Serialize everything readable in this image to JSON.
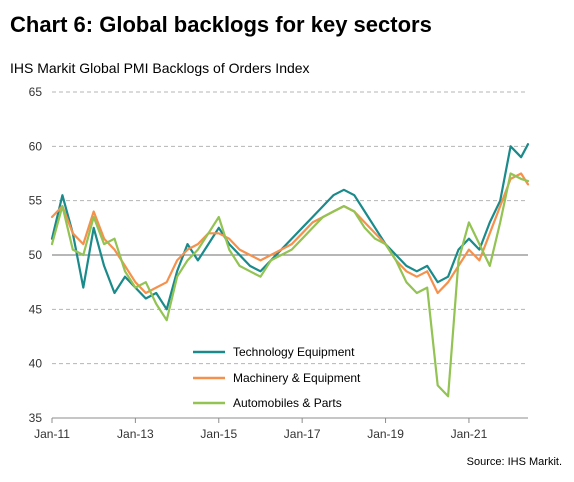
{
  "chart_data": {
    "type": "line",
    "title": "Chart 6: Global backlogs for key sectors",
    "subtitle": "IHS Markit Global PMI Backlogs of Orders Index",
    "source": "Source: IHS Markit.",
    "ylim": [
      35,
      65
    ],
    "yticks": [
      35,
      40,
      45,
      50,
      55,
      60,
      65
    ],
    "xlim": [
      "2011-01",
      "2022-06"
    ],
    "xticks": [
      "Jan-11",
      "Jan-13",
      "Jan-15",
      "Jan-17",
      "Jan-19",
      "Jan-21"
    ],
    "reference_line": 50,
    "grid": "horizontal dashed",
    "legend_position": "bottom-center",
    "series": [
      {
        "name": "Technology Equipment",
        "color": "#1a8a8a",
        "points": [
          [
            "2011-01",
            51.5
          ],
          [
            "2011-04",
            55.5
          ],
          [
            "2011-07",
            52.0
          ],
          [
            "2011-10",
            47.0
          ],
          [
            "2012-01",
            52.5
          ],
          [
            "2012-04",
            49.0
          ],
          [
            "2012-07",
            46.5
          ],
          [
            "2012-10",
            48.0
          ],
          [
            "2013-01",
            47.0
          ],
          [
            "2013-04",
            46.0
          ],
          [
            "2013-07",
            46.5
          ],
          [
            "2013-10",
            45.0
          ],
          [
            "2014-01",
            48.5
          ],
          [
            "2014-04",
            51.0
          ],
          [
            "2014-07",
            49.5
          ],
          [
            "2014-10",
            51.0
          ],
          [
            "2015-01",
            52.5
          ],
          [
            "2015-04",
            51.0
          ],
          [
            "2015-07",
            50.0
          ],
          [
            "2015-10",
            49.0
          ],
          [
            "2016-01",
            48.5
          ],
          [
            "2016-04",
            49.5
          ],
          [
            "2016-07",
            50.5
          ],
          [
            "2016-10",
            51.5
          ],
          [
            "2017-01",
            52.5
          ],
          [
            "2017-04",
            53.5
          ],
          [
            "2017-07",
            54.5
          ],
          [
            "2017-10",
            55.5
          ],
          [
            "2018-01",
            56.0
          ],
          [
            "2018-04",
            55.5
          ],
          [
            "2018-07",
            54.0
          ],
          [
            "2018-10",
            52.5
          ],
          [
            "2019-01",
            51.0
          ],
          [
            "2019-04",
            50.0
          ],
          [
            "2019-07",
            49.0
          ],
          [
            "2019-10",
            48.5
          ],
          [
            "2020-01",
            49.0
          ],
          [
            "2020-04",
            47.5
          ],
          [
            "2020-07",
            48.0
          ],
          [
            "2020-10",
            50.5
          ],
          [
            "2021-01",
            51.5
          ],
          [
            "2021-04",
            50.5
          ],
          [
            "2021-07",
            53.0
          ],
          [
            "2021-10",
            55.0
          ],
          [
            "2022-01",
            60.0
          ],
          [
            "2022-04",
            59.0
          ],
          [
            "2022-06",
            60.2
          ]
        ]
      },
      {
        "name": "Machinery & Equipment",
        "color": "#f5914d",
        "points": [
          [
            "2011-01",
            53.5
          ],
          [
            "2011-04",
            54.5
          ],
          [
            "2011-07",
            52.0
          ],
          [
            "2011-10",
            51.0
          ],
          [
            "2012-01",
            54.0
          ],
          [
            "2012-04",
            51.5
          ],
          [
            "2012-07",
            50.5
          ],
          [
            "2012-10",
            49.0
          ],
          [
            "2013-01",
            47.5
          ],
          [
            "2013-04",
            46.5
          ],
          [
            "2013-07",
            47.0
          ],
          [
            "2013-10",
            47.5
          ],
          [
            "2014-01",
            49.5
          ],
          [
            "2014-04",
            50.5
          ],
          [
            "2014-07",
            51.0
          ],
          [
            "2014-10",
            52.0
          ],
          [
            "2015-01",
            52.0
          ],
          [
            "2015-04",
            51.5
          ],
          [
            "2015-07",
            50.5
          ],
          [
            "2015-10",
            50.0
          ],
          [
            "2016-01",
            49.5
          ],
          [
            "2016-04",
            50.0
          ],
          [
            "2016-07",
            50.5
          ],
          [
            "2016-10",
            51.0
          ],
          [
            "2017-01",
            52.0
          ],
          [
            "2017-04",
            53.0
          ],
          [
            "2017-07",
            53.5
          ],
          [
            "2017-10",
            54.0
          ],
          [
            "2018-01",
            54.5
          ],
          [
            "2018-04",
            54.0
          ],
          [
            "2018-07",
            53.0
          ],
          [
            "2018-10",
            52.0
          ],
          [
            "2019-01",
            51.0
          ],
          [
            "2019-04",
            49.5
          ],
          [
            "2019-07",
            48.5
          ],
          [
            "2019-10",
            48.0
          ],
          [
            "2020-01",
            48.5
          ],
          [
            "2020-04",
            46.5
          ],
          [
            "2020-07",
            47.5
          ],
          [
            "2020-10",
            49.0
          ],
          [
            "2021-01",
            50.5
          ],
          [
            "2021-04",
            49.5
          ],
          [
            "2021-07",
            52.0
          ],
          [
            "2021-10",
            54.5
          ],
          [
            "2022-01",
            57.0
          ],
          [
            "2022-04",
            57.5
          ],
          [
            "2022-06",
            56.5
          ]
        ]
      },
      {
        "name": "Automobiles & Parts",
        "color": "#92c353",
        "points": [
          [
            "2011-01",
            51.0
          ],
          [
            "2011-04",
            54.5
          ],
          [
            "2011-07",
            50.5
          ],
          [
            "2011-10",
            50.0
          ],
          [
            "2012-01",
            53.5
          ],
          [
            "2012-04",
            51.0
          ],
          [
            "2012-07",
            51.5
          ],
          [
            "2012-10",
            48.5
          ],
          [
            "2013-01",
            47.0
          ],
          [
            "2013-04",
            47.5
          ],
          [
            "2013-07",
            45.5
          ],
          [
            "2013-10",
            44.0
          ],
          [
            "2014-01",
            48.0
          ],
          [
            "2014-04",
            49.5
          ],
          [
            "2014-07",
            50.5
          ],
          [
            "2014-10",
            52.0
          ],
          [
            "2015-01",
            53.5
          ],
          [
            "2015-04",
            50.5
          ],
          [
            "2015-07",
            49.0
          ],
          [
            "2015-10",
            48.5
          ],
          [
            "2016-01",
            48.0
          ],
          [
            "2016-04",
            49.5
          ],
          [
            "2016-07",
            50.0
          ],
          [
            "2016-10",
            50.5
          ],
          [
            "2017-01",
            51.5
          ],
          [
            "2017-04",
            52.5
          ],
          [
            "2017-07",
            53.5
          ],
          [
            "2017-10",
            54.0
          ],
          [
            "2018-01",
            54.5
          ],
          [
            "2018-04",
            54.0
          ],
          [
            "2018-07",
            52.5
          ],
          [
            "2018-10",
            51.5
          ],
          [
            "2019-01",
            51.0
          ],
          [
            "2019-04",
            49.5
          ],
          [
            "2019-07",
            47.5
          ],
          [
            "2019-10",
            46.5
          ],
          [
            "2020-01",
            47.0
          ],
          [
            "2020-04",
            38.0
          ],
          [
            "2020-07",
            37.0
          ],
          [
            "2020-10",
            49.5
          ],
          [
            "2021-01",
            53.0
          ],
          [
            "2021-04",
            51.0
          ],
          [
            "2021-07",
            49.0
          ],
          [
            "2021-10",
            53.0
          ],
          [
            "2022-01",
            57.5
          ],
          [
            "2022-04",
            57.0
          ],
          [
            "2022-06",
            56.8
          ]
        ]
      }
    ]
  }
}
